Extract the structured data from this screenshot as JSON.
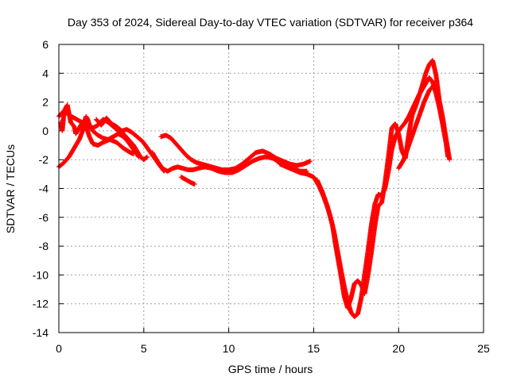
{
  "chart_data": {
    "type": "scatter",
    "title": "Day 353 of 2024, Sidereal Day-to-day VTEC variation (SDTVAR) for receiver p364",
    "xlabel": "GPS time / hours",
    "ylabel": "SDTVAR / TECUs",
    "xlim": [
      0,
      25
    ],
    "ylim": [
      -14,
      6
    ],
    "x_ticks": [
      0,
      5,
      10,
      15,
      20,
      25
    ],
    "y_ticks": [
      -14,
      -12,
      -10,
      -8,
      -6,
      -4,
      -2,
      0,
      2,
      4,
      6
    ],
    "grid": true,
    "marker": "+",
    "series": [
      {
        "name": "SDTVAR",
        "color": "#ff0000",
        "tracks": [
          [
            [
              0.0,
              -2.5
            ],
            [
              0.3,
              -2.2
            ],
            [
              0.6,
              -1.8
            ],
            [
              0.9,
              -1.2
            ],
            [
              1.2,
              -0.6
            ],
            [
              1.4,
              0.0
            ],
            [
              1.5,
              0.6
            ],
            [
              1.6,
              1.0
            ],
            [
              1.7,
              0.8
            ],
            [
              1.8,
              0.4
            ],
            [
              2.0,
              0.2
            ],
            [
              2.3,
              0.4
            ],
            [
              2.6,
              0.8
            ],
            [
              2.9,
              0.6
            ],
            [
              3.2,
              0.3
            ],
            [
              3.5,
              0.0
            ],
            [
              3.8,
              -0.2
            ],
            [
              4.1,
              -0.6
            ],
            [
              4.4,
              -1.0
            ],
            [
              4.6,
              -1.4
            ],
            [
              4.8,
              -1.8
            ],
            [
              5.0,
              -2.0
            ],
            [
              5.2,
              -1.8
            ]
          ],
          [
            [
              0.1,
              0.6
            ],
            [
              0.2,
              0.0
            ],
            [
              0.3,
              1.2
            ],
            [
              0.4,
              1.6
            ],
            [
              0.5,
              1.8
            ],
            [
              0.6,
              1.2
            ],
            [
              0.7,
              0.6
            ],
            [
              0.9,
              0.3
            ],
            [
              1.0,
              -0.2
            ],
            [
              1.2,
              0.2
            ],
            [
              1.4,
              0.6
            ],
            [
              1.6,
              0.3
            ],
            [
              1.8,
              -0.4
            ],
            [
              2.0,
              -0.9
            ],
            [
              2.3,
              -1.0
            ],
            [
              2.6,
              -0.8
            ],
            [
              3.0,
              -0.6
            ],
            [
              3.4,
              -0.8
            ],
            [
              3.8,
              -1.2
            ],
            [
              4.2,
              -1.5
            ],
            [
              4.4,
              -1.6
            ]
          ],
          [
            [
              0.0,
              1.0
            ],
            [
              0.3,
              1.4
            ],
            [
              0.6,
              1.1
            ],
            [
              0.9,
              0.9
            ],
            [
              1.2,
              0.7
            ],
            [
              1.5,
              0.5
            ],
            [
              1.8,
              0.3
            ],
            [
              2.0,
              0.0
            ],
            [
              2.3,
              -0.3
            ],
            [
              2.6,
              -0.5
            ],
            [
              2.9,
              -0.6
            ],
            [
              3.2,
              -0.4
            ],
            [
              3.5,
              -0.2
            ],
            [
              3.8,
              -0.4
            ],
            [
              4.1,
              -0.8
            ],
            [
              4.4,
              -1.3
            ],
            [
              4.7,
              -1.8
            ]
          ],
          [
            [
              2.2,
              0.8
            ],
            [
              2.5,
              0.4
            ],
            [
              2.8,
              0.9
            ],
            [
              3.1,
              0.5
            ],
            [
              3.4,
              0.3
            ],
            [
              3.7,
              0.0
            ],
            [
              4.0,
              0.1
            ],
            [
              4.3,
              -0.1
            ],
            [
              4.6,
              -0.4
            ],
            [
              4.9,
              -0.7
            ],
            [
              5.1,
              -1.0
            ],
            [
              5.4,
              -1.5
            ],
            [
              5.7,
              -2.0
            ],
            [
              6.0,
              -2.5
            ],
            [
              6.2,
              -2.8
            ]
          ],
          [
            [
              6.0,
              -0.4
            ],
            [
              6.3,
              -0.3
            ],
            [
              6.6,
              -0.5
            ],
            [
              6.9,
              -0.9
            ],
            [
              7.2,
              -1.3
            ],
            [
              7.5,
              -1.7
            ],
            [
              7.8,
              -2.0
            ],
            [
              8.1,
              -2.2
            ],
            [
              8.4,
              -2.3
            ],
            [
              8.7,
              -2.4
            ],
            [
              9.0,
              -2.5
            ],
            [
              9.3,
              -2.6
            ],
            [
              9.6,
              -2.7
            ],
            [
              10.0,
              -2.7
            ],
            [
              10.4,
              -2.6
            ],
            [
              10.8,
              -2.3
            ],
            [
              11.2,
              -1.9
            ],
            [
              11.6,
              -1.5
            ],
            [
              12.0,
              -1.4
            ],
            [
              12.4,
              -1.6
            ],
            [
              12.8,
              -1.9
            ],
            [
              13.2,
              -2.1
            ],
            [
              13.6,
              -2.3
            ],
            [
              14.0,
              -2.4
            ],
            [
              14.4,
              -2.3
            ],
            [
              14.8,
              -2.1
            ]
          ],
          [
            [
              5.5,
              -1.5
            ],
            [
              5.8,
              -2.1
            ],
            [
              6.1,
              -2.6
            ],
            [
              6.4,
              -2.8
            ],
            [
              6.7,
              -2.6
            ],
            [
              7.0,
              -2.5
            ],
            [
              7.3,
              -2.6
            ],
            [
              7.6,
              -2.7
            ],
            [
              7.9,
              -2.7
            ],
            [
              8.2,
              -2.6
            ],
            [
              8.6,
              -2.5
            ],
            [
              9.0,
              -2.6
            ],
            [
              9.4,
              -2.8
            ],
            [
              9.8,
              -2.9
            ],
            [
              10.2,
              -2.9
            ],
            [
              10.6,
              -2.7
            ],
            [
              11.0,
              -2.4
            ],
            [
              11.4,
              -2.1
            ],
            [
              11.8,
              -1.9
            ],
            [
              12.2,
              -1.8
            ],
            [
              12.6,
              -1.9
            ],
            [
              13.0,
              -2.2
            ],
            [
              13.4,
              -2.5
            ],
            [
              13.8,
              -2.6
            ],
            [
              14.2,
              -2.8
            ],
            [
              14.6,
              -2.8
            ]
          ],
          [
            [
              7.2,
              -3.2
            ],
            [
              7.5,
              -3.4
            ],
            [
              7.8,
              -3.6
            ],
            [
              8.0,
              -3.7
            ]
          ],
          [
            [
              13.0,
              -2.3
            ],
            [
              13.4,
              -2.5
            ],
            [
              13.8,
              -2.7
            ],
            [
              14.2,
              -2.9
            ],
            [
              14.6,
              -3.0
            ],
            [
              15.0,
              -3.2
            ],
            [
              15.3,
              -3.8
            ],
            [
              15.6,
              -4.6
            ],
            [
              15.9,
              -5.6
            ],
            [
              16.2,
              -7.0
            ],
            [
              16.4,
              -8.3
            ],
            [
              16.6,
              -9.6
            ],
            [
              16.8,
              -10.8
            ],
            [
              17.0,
              -11.8
            ],
            [
              17.2,
              -12.6
            ],
            [
              17.4,
              -12.9
            ],
            [
              17.6,
              -12.7
            ],
            [
              17.8,
              -11.6
            ],
            [
              18.0,
              -10.0
            ],
            [
              18.2,
              -8.3
            ],
            [
              18.4,
              -6.5
            ],
            [
              18.6,
              -5.1
            ],
            [
              18.8,
              -4.4
            ],
            [
              19.0,
              -4.5
            ],
            [
              19.2,
              -4.0
            ],
            [
              19.4,
              -2.8
            ],
            [
              19.6,
              -1.3
            ],
            [
              19.8,
              -0.4
            ],
            [
              20.0,
              0.0
            ],
            [
              20.2,
              0.3
            ],
            [
              20.4,
              0.6
            ],
            [
              20.6,
              1.0
            ],
            [
              20.8,
              1.5
            ],
            [
              21.0,
              2.0
            ],
            [
              21.2,
              2.5
            ],
            [
              21.4,
              2.9
            ],
            [
              21.6,
              3.3
            ],
            [
              21.8,
              3.7
            ],
            [
              22.0,
              3.4
            ],
            [
              22.2,
              2.6
            ],
            [
              22.4,
              1.6
            ],
            [
              22.6,
              0.4
            ],
            [
              22.8,
              -0.9
            ],
            [
              22.9,
              -1.8
            ]
          ],
          [
            [
              15.2,
              -3.4
            ],
            [
              15.5,
              -4.2
            ],
            [
              15.8,
              -5.2
            ],
            [
              16.1,
              -6.5
            ],
            [
              16.3,
              -8.0
            ],
            [
              16.6,
              -10.0
            ],
            [
              16.8,
              -11.5
            ],
            [
              17.0,
              -12.3
            ],
            [
              17.2,
              -11.6
            ],
            [
              17.4,
              -10.6
            ],
            [
              17.6,
              -10.4
            ],
            [
              17.8,
              -10.7
            ],
            [
              18.0,
              -11.3
            ],
            [
              18.2,
              -10.0
            ],
            [
              18.4,
              -8.4
            ],
            [
              18.6,
              -6.6
            ],
            [
              18.8,
              -5.2
            ],
            [
              19.0,
              -5.0
            ],
            [
              19.2,
              -3.6
            ],
            [
              19.4,
              -1.8
            ],
            [
              19.6,
              0.2
            ],
            [
              19.8,
              0.5
            ],
            [
              20.0,
              -0.2
            ],
            [
              20.2,
              -1.4
            ],
            [
              20.4,
              -1.9
            ],
            [
              20.6,
              -0.2
            ],
            [
              20.8,
              1.1
            ],
            [
              21.0,
              1.7
            ],
            [
              21.2,
              2.4
            ],
            [
              21.4,
              3.2
            ],
            [
              21.6,
              4.0
            ],
            [
              21.8,
              4.6
            ],
            [
              22.0,
              4.9
            ],
            [
              22.2,
              3.9
            ],
            [
              22.4,
              2.1
            ],
            [
              22.6,
              0.9
            ],
            [
              22.8,
              -0.6
            ],
            [
              23.0,
              -2.0
            ]
          ],
          [
            [
              20.0,
              -2.6
            ],
            [
              20.3,
              -2.0
            ],
            [
              20.6,
              -1.0
            ],
            [
              20.9,
              0.0
            ],
            [
              21.2,
              1.0
            ],
            [
              21.5,
              2.0
            ],
            [
              21.8,
              2.8
            ],
            [
              22.1,
              3.2
            ],
            [
              22.3,
              2.8
            ]
          ]
        ]
      }
    ]
  }
}
